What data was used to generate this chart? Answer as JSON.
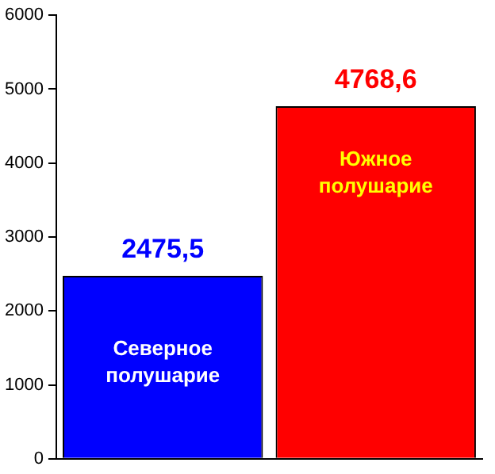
{
  "chart_data": {
    "type": "bar",
    "categories": [
      "Северное полушарие",
      "Южное полушарие"
    ],
    "values": [
      2475.5,
      4768.6
    ],
    "colors": [
      "#0000ff",
      "#ff0000"
    ],
    "value_labels": [
      "2475,5",
      "4768,6"
    ],
    "ylim": [
      0,
      6000
    ],
    "yticks": [
      0,
      1000,
      2000,
      3000,
      4000,
      5000,
      6000
    ],
    "grid": false,
    "legend": false
  }
}
